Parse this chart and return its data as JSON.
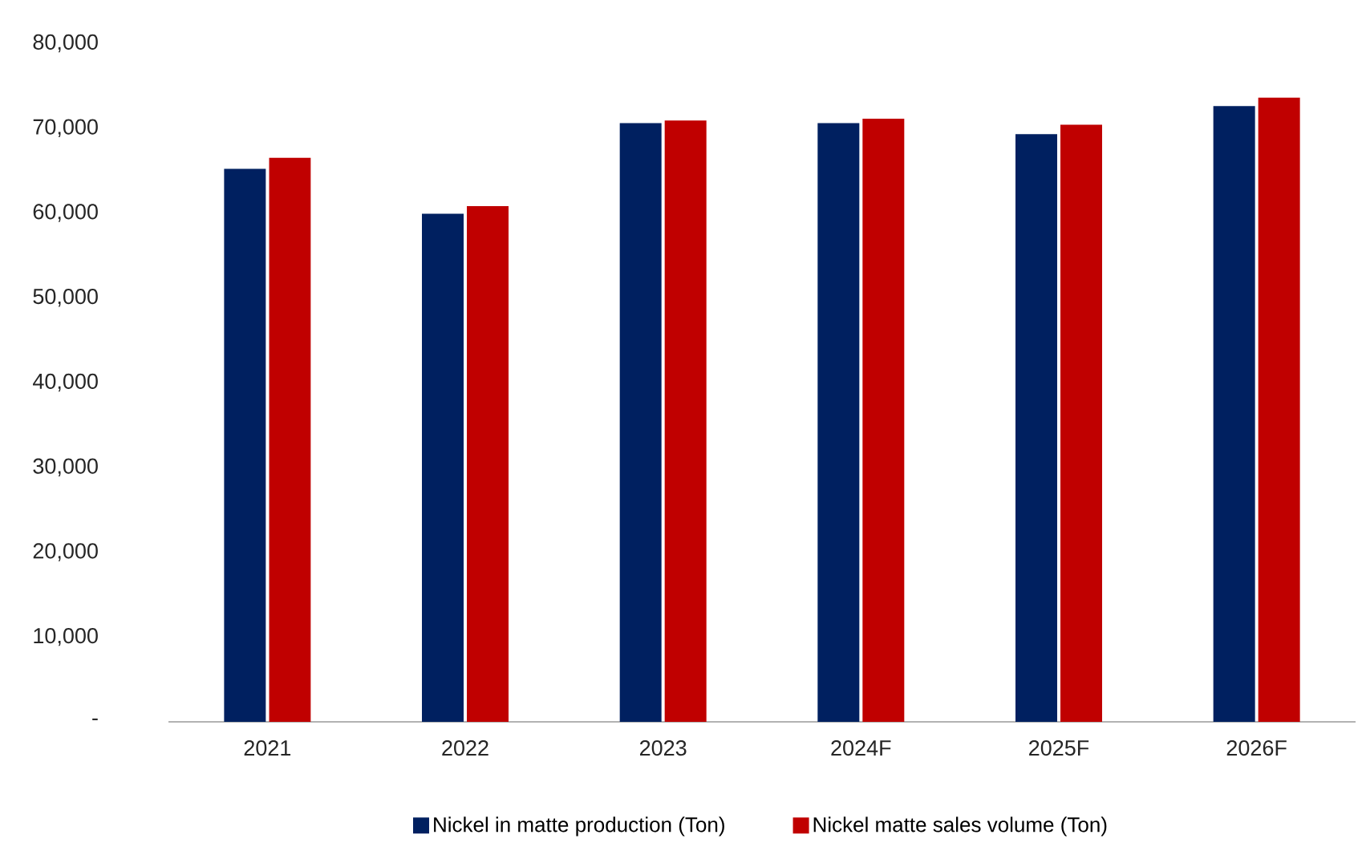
{
  "chart_data": {
    "type": "bar",
    "categories": [
      "2021",
      "2022",
      "2023",
      "2024F",
      "2025F",
      "2026F"
    ],
    "series": [
      {
        "name": "Nickel in matte production (Ton)",
        "color": "#002060",
        "values": [
          65200,
          59900,
          70600,
          70600,
          69300,
          72600
        ]
      },
      {
        "name": "Nickel matte sales volume (Ton)",
        "color": "#c00000",
        "values": [
          66500,
          60800,
          70900,
          71100,
          70400,
          73600
        ]
      }
    ],
    "ylim": [
      0,
      80000
    ],
    "yticks": [
      {
        "value": 0,
        "label": "-"
      },
      {
        "value": 10000,
        "label": "10,000"
      },
      {
        "value": 20000,
        "label": "20,000"
      },
      {
        "value": 30000,
        "label": "30,000"
      },
      {
        "value": 40000,
        "label": "40,000"
      },
      {
        "value": 50000,
        "label": "50,000"
      },
      {
        "value": 60000,
        "label": "60,000"
      },
      {
        "value": 70000,
        "label": "70,000"
      },
      {
        "value": 80000,
        "label": "80,000"
      }
    ],
    "legend": "bottom"
  }
}
